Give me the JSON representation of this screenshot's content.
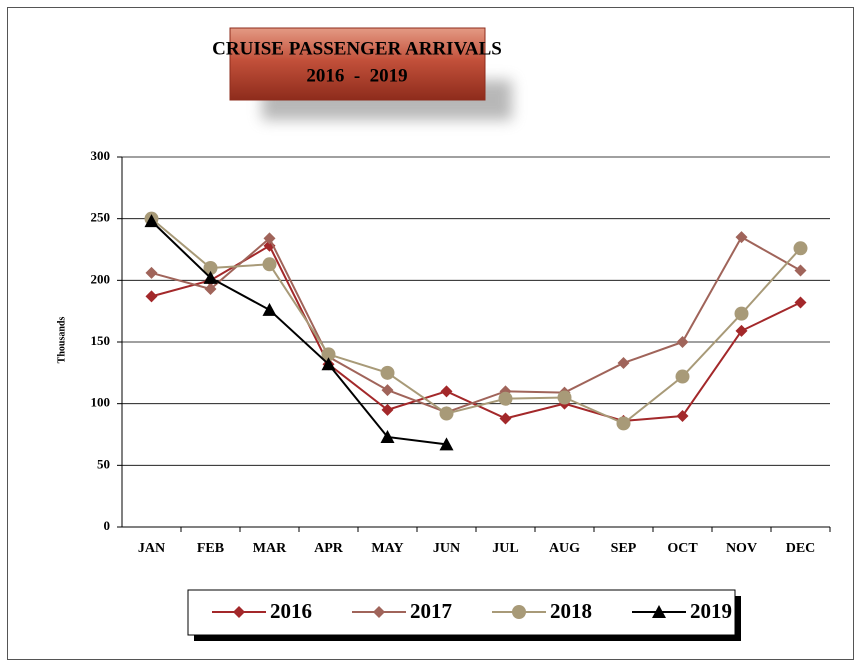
{
  "chart_data": {
    "type": "line",
    "title": [
      "CRUISE PASSENGER ARRIVALS",
      "2016  -  2019"
    ],
    "y_label": "Thousands",
    "categories": [
      "JAN",
      "FEB",
      "MAR",
      "APR",
      "MAY",
      "JUN",
      "JUL",
      "AUG",
      "SEP",
      "OCT",
      "NOV",
      "DEC"
    ],
    "series": [
      {
        "name": "2016",
        "color": "#a3282a",
        "marker": "diamond",
        "values": [
          187,
          200,
          228,
          132,
          95,
          110,
          88,
          100,
          86,
          90,
          159,
          182
        ]
      },
      {
        "name": "2017",
        "color": "#a0645a",
        "marker": "diamond",
        "values": [
          206,
          193,
          234,
          138,
          111,
          93,
          110,
          109,
          133,
          150,
          235,
          208
        ]
      },
      {
        "name": "2018",
        "color": "#a89a78",
        "marker": "circle",
        "values": [
          250,
          210,
          213,
          140,
          125,
          92,
          104,
          105,
          84,
          122,
          173,
          226
        ]
      },
      {
        "name": "2019",
        "color": "#000000",
        "marker": "triangle",
        "values": [
          248,
          202,
          176,
          132,
          73,
          67,
          null,
          null,
          null,
          null,
          null,
          null
        ]
      }
    ],
    "ylim": [
      0,
      300
    ],
    "yticks": [
      0,
      50,
      100,
      150,
      200,
      250,
      300
    ],
    "grid": true,
    "legend": "bottom"
  }
}
